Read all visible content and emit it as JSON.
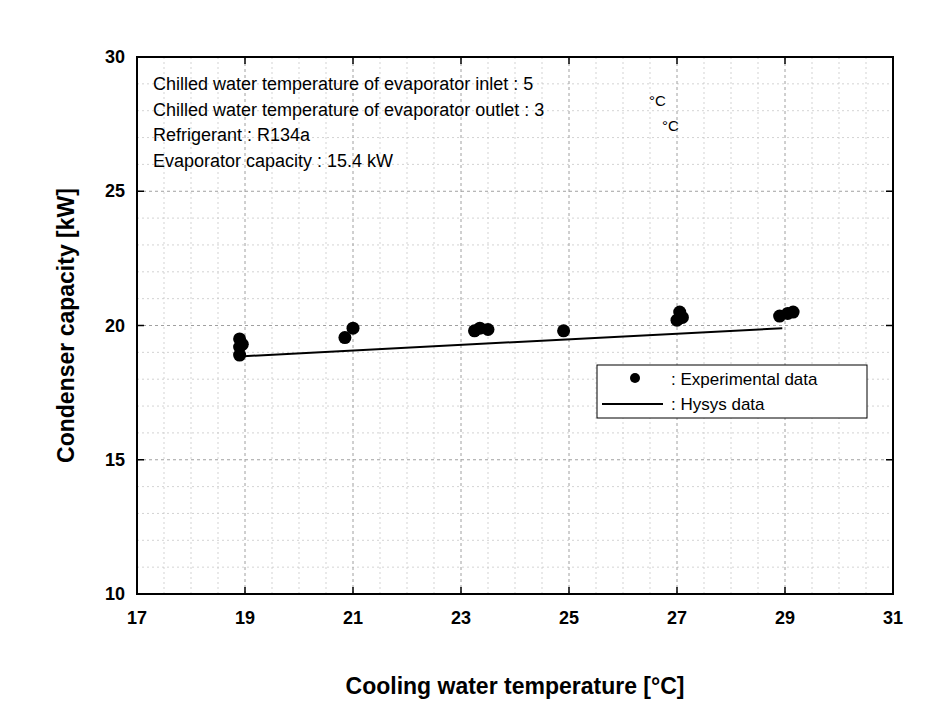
{
  "chart_data": {
    "type": "scatter",
    "x_label": "Cooling water temperature [°C]",
    "y_label": "Condenser capacity [kW]",
    "annotations": [
      "Chilled water temperature of evaporator inlet : 5",
      "Chilled water temperature of evaporator outlet : 3",
      "Refrigerant : R134a",
      "Evaporator capacity : 15.4 kW",
      "°C",
      "°C"
    ],
    "xlim": [
      17,
      31
    ],
    "xticks": [
      17,
      19,
      21,
      23,
      25,
      27,
      29,
      31
    ],
    "ylim": [
      10,
      30
    ],
    "yticks": [
      10,
      15,
      20,
      25,
      30
    ],
    "grid": true,
    "legend": "right",
    "series": [
      {
        "name": ": Experimental data",
        "type": "scatter",
        "marker": "circle",
        "color": "#000000",
        "x": [
          18.9,
          18.9,
          18.95,
          18.9,
          20.85,
          21.0,
          23.25,
          23.35,
          23.5,
          24.9,
          27.0,
          27.05,
          27.1,
          28.9,
          29.05,
          29.15
        ],
        "values": [
          18.9,
          19.5,
          19.3,
          19.2,
          19.55,
          19.9,
          19.8,
          19.9,
          19.85,
          19.8,
          20.2,
          20.5,
          20.3,
          20.35,
          20.45,
          20.5
        ]
      },
      {
        "name": ": Hysys data",
        "type": "line",
        "line_style": "solid",
        "color": "#000000",
        "x": [
          18.9,
          28.95
        ],
        "values": [
          18.85,
          19.9
        ]
      }
    ]
  }
}
